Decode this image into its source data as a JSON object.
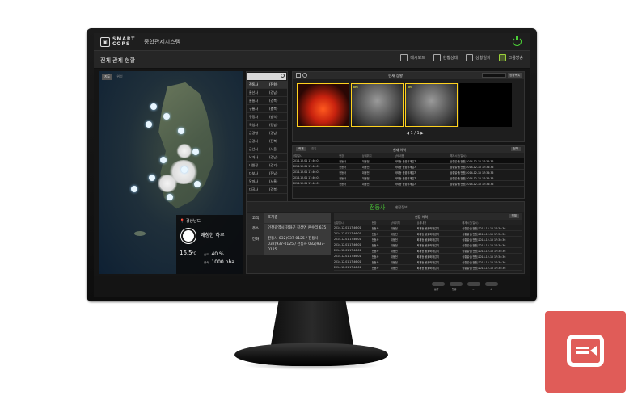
{
  "app": {
    "logo_text_top": "SMART",
    "logo_text_bottom": "COPS",
    "title": "종합관제시스템"
  },
  "subheader": {
    "page_title": "전체 관제 현황",
    "tools": [
      {
        "label": "대시보드",
        "icon": "dashboard-icon"
      },
      {
        "label": "현황상태",
        "icon": "status-icon"
      },
      {
        "label": "상황일지",
        "icon": "log-icon"
      },
      {
        "label": "그룹방송",
        "icon": "broadcast-icon"
      }
    ]
  },
  "map": {
    "tabs": [
      "지도",
      "위성"
    ],
    "weather": {
      "location": "경상남도",
      "description": "쾌청한 하루",
      "temperature": "16.5",
      "temp_unit": "°C",
      "humidity_label": "습도",
      "humidity": "40 %",
      "pressure_label": "풍속",
      "pressure": "1000 pha"
    }
  },
  "district_list": {
    "header": [
      "전동사",
      "(전원)"
    ],
    "rows": [
      [
        "울산사",
        "(경남)"
      ],
      [
        "울릉사",
        "(경북)"
      ],
      [
        "구룡사",
        "(충북)"
      ],
      [
        "구정사",
        "(충북)"
      ],
      [
        "국청사",
        "(경남)"
      ],
      [
        "금강암",
        "(경남)"
      ],
      [
        "금강사",
        "(전북)"
      ],
      [
        "금선사",
        "(서울)"
      ],
      [
        "낙가사",
        "(경남)"
      ],
      [
        "내원정",
        "(경기)"
      ],
      [
        "다보사",
        "(전남)"
      ],
      [
        "달마사",
        "(서울)"
      ],
      [
        "대곡사",
        "(경북)"
      ]
    ]
  },
  "video": {
    "title": "현재 상황",
    "button": "상황목록",
    "page": "1 / 1",
    "feeds": [
      {
        "type": "fire",
        "tag": ""
      },
      {
        "type": "cam",
        "tag": "REC"
      },
      {
        "type": "cam",
        "tag": "REC"
      },
      {
        "type": "empty",
        "tag": ""
      }
    ]
  },
  "alarm_table": {
    "tabs": [
      "화재",
      "침입"
    ],
    "title": "현재 이력",
    "button": "전체",
    "columns": [
      "상황일시",
      "현장",
      "상세위치",
      "상세내용",
      "해제시간(일시)"
    ],
    "rows": [
      [
        "2014.12.01 17:46:01",
        "전등사",
        "대웅전",
        "화재등 불꽃화재감지",
        "상황발생(전원)2014-12-15 17:34:36"
      ],
      [
        "2014.12.01 17:46:01",
        "전등사",
        "대웅전",
        "화재등 불꽃화재감지",
        "상황발생(전원)2014-12-15 17:34:36"
      ],
      [
        "2014.12.01 17:46:01",
        "전등사",
        "대웅전",
        "화재등 불꽃화재감지",
        "상황발생(전원)2014-12-15 17:34:36"
      ],
      [
        "2014.12.01 17:46:01",
        "전등사",
        "대웅전",
        "화재등 불꽃화재감지",
        "상황발생(전원)2014-12-15 17:34:36"
      ],
      [
        "2014.12.01 17:46:01",
        "전등사",
        "대웅전",
        "화재등 불꽃화재감지",
        "상황발생(전원)2014-12-15 17:34:36"
      ]
    ]
  },
  "facility": {
    "name": "전등사",
    "subtitle": "현장정보",
    "info": [
      {
        "key": "고객",
        "value": "조계종"
      },
      {
        "key": "주소",
        "value": "인천광역시 강화군 길상면 온수리 635"
      },
      {
        "key": "전화",
        "value": "전등사   032)937-0125 / 전등사   032)937-0125 / 전등사   032)937-0125"
      }
    ],
    "history_title": "현장 이력",
    "history_button": "전체",
    "columns": [
      "상황일시",
      "현장",
      "상세위치",
      "상세내용",
      "해제시간(일시)"
    ],
    "rows": [
      [
        "2014.12.01 17:46:01",
        "전등사",
        "대웅전",
        "화재등 불꽃화재감지",
        "상황발생(전원)2014-12-15 17:34:36"
      ],
      [
        "2014.12.01 17:46:01",
        "전등사",
        "대웅전",
        "화재등 불꽃화재감지",
        "상황발생(전원)2014-12-15 17:34:36"
      ],
      [
        "2014.12.01 17:46:01",
        "전등사",
        "대웅전",
        "화재등 불꽃화재감지",
        "상황발생(전원)2014-12-15 17:34:36"
      ],
      [
        "2014.12.01 17:46:01",
        "전등사",
        "대웅전",
        "화재등 불꽃화재감지",
        "상황발생(전원)2014-12-15 17:34:36"
      ],
      [
        "2014.12.01 17:46:01",
        "전등사",
        "대웅전",
        "화재등 불꽃화재감지",
        "상황발생(전원)2014-12-15 17:34:36"
      ],
      [
        "2014.12.01 17:46:01",
        "전등사",
        "대웅전",
        "화재등 불꽃화재감지",
        "상황발생(전원)2014-12-15 17:34:36"
      ],
      [
        "2014.12.01 17:46:01",
        "전등사",
        "대웅전",
        "화재등 불꽃화재감지",
        "상황발생(전원)2014-12-15 17:34:36"
      ],
      [
        "2014.12.01 17:46:01",
        "전등사",
        "대웅전",
        "화재등 불꽃화재감지",
        "상황발생(전원)2014-12-15 17:34:36"
      ]
    ]
  },
  "bottom_bar": {
    "buttons": [
      "음악",
      "방송",
      "−",
      "+"
    ]
  },
  "colors": {
    "accent_green": "#4cd137",
    "tile_red": "#e05c58",
    "highlight_yellow": "#ffd21e"
  }
}
